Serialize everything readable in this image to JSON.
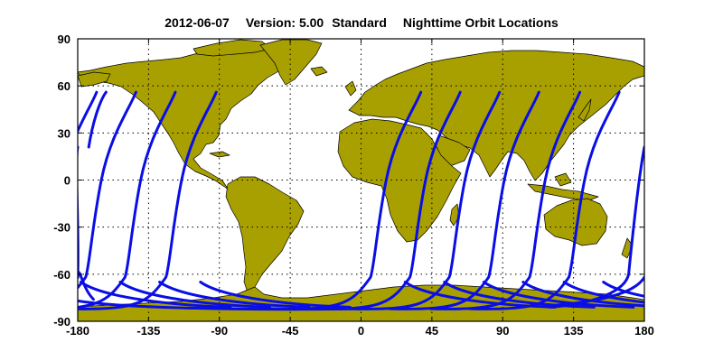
{
  "title": {
    "date": "2012-06-07",
    "version": "Version: 5.00",
    "product": "Standard",
    "subject": "Nighttime Orbit Locations"
  },
  "map": {
    "projection": "equirectangular",
    "lon_range": [
      -180,
      180
    ],
    "lat_range": [
      -90,
      90
    ],
    "lon_ticks": [
      -180,
      -135,
      -90,
      -45,
      0,
      45,
      90,
      135,
      180
    ],
    "lat_ticks": [
      90,
      60,
      30,
      0,
      -30,
      -60,
      -90
    ],
    "grid": true,
    "land_color": "#a8a000",
    "background_color": "#ffffff"
  },
  "orbits": {
    "color": "#0a0ee6",
    "count": 14,
    "min_latitude": -82,
    "max_latitude": 56,
    "northern_ends_lon": [
      -168,
      -143,
      -118,
      -92,
      38,
      63,
      88,
      113,
      139,
      164
    ],
    "wrap_segment": {
      "from_lon": -180,
      "from_lat": -62,
      "to_lon": -180,
      "to_lat": 21
    }
  }
}
